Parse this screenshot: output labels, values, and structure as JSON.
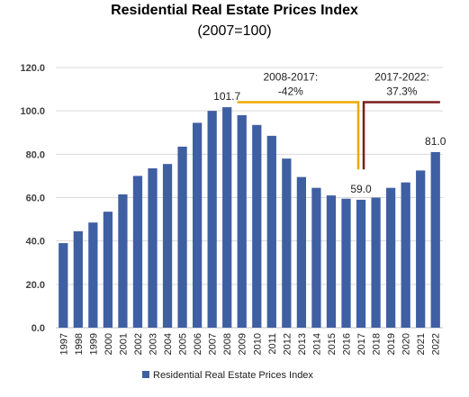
{
  "chart_data": {
    "type": "bar",
    "title": "Residential Real Estate Prices Index",
    "subtitle": "(2007=100)",
    "xlabel": "",
    "ylabel": "",
    "ylim": [
      0,
      120
    ],
    "yticks": [
      "0.0",
      "20.0",
      "40.0",
      "60.0",
      "80.0",
      "100.0",
      "120.0"
    ],
    "grid": true,
    "legend_position": "bottom",
    "categories": [
      "1997",
      "1998",
      "1999",
      "2000",
      "2001",
      "2002",
      "2003",
      "2004",
      "2005",
      "2006",
      "2007",
      "2008",
      "2009",
      "2010",
      "2011",
      "2012",
      "2013",
      "2014",
      "2015",
      "2016",
      "2017",
      "2018",
      "2019",
      "2020",
      "2021",
      "2022"
    ],
    "series": [
      {
        "name": "Residential Real Estate Prices Index",
        "color": "#3F5FA3",
        "values": [
          39.0,
          44.5,
          48.5,
          53.5,
          61.5,
          70.0,
          73.5,
          75.5,
          83.5,
          94.5,
          100.0,
          101.7,
          98.0,
          93.5,
          88.5,
          78.0,
          69.5,
          64.5,
          61.0,
          59.5,
          59.0,
          60.0,
          64.5,
          67.0,
          72.5,
          81.0
        ]
      }
    ],
    "data_labels": [
      {
        "category": "2008",
        "text": "101.7"
      },
      {
        "category": "2017",
        "text": "59.0"
      },
      {
        "category": "2022",
        "text": "81.0"
      }
    ],
    "annotations": [
      {
        "text_line1": "2008-2017:",
        "text_line2": "-42%",
        "from": "2009",
        "to": "2017",
        "level": 104,
        "drop_to": 73,
        "color": "#F0A800"
      },
      {
        "text_line1": "2017-2022:",
        "text_line2": "37.3%",
        "from": "2017",
        "to": "2022",
        "level": 104,
        "drop_to": 73,
        "color": "#7B1E1E"
      }
    ]
  }
}
